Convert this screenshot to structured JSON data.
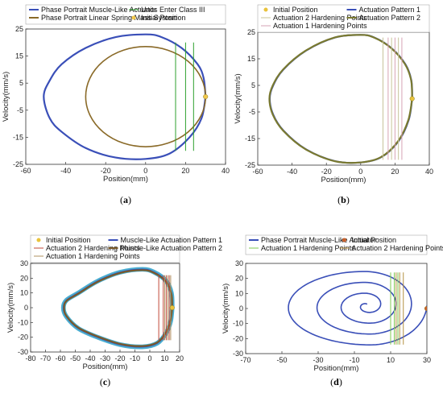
{
  "figure": {
    "panels": [
      {
        "caption_letter": "a"
      },
      {
        "caption_letter": "b"
      },
      {
        "caption_letter": "c"
      },
      {
        "caption_letter": "d"
      }
    ]
  },
  "chart_data": [
    {
      "panel": "a",
      "type": "line",
      "xlabel": "Position(mm)",
      "ylabel": "Velocity(mm/s)",
      "xlim": [
        -60,
        40
      ],
      "ylim": [
        -25,
        25
      ],
      "xticks": [
        -60,
        -40,
        -20,
        0,
        20,
        40
      ],
      "yticks": [
        -25,
        -15,
        -5,
        5,
        15,
        25
      ],
      "legend": {
        "placement": "top",
        "columns": 2,
        "entries": [
          "Phase Portrait Muscle-Like Actuator",
          "Units Enter Class III",
          "Phase Portrait Linear Spring Mass System",
          "Initial Position"
        ]
      },
      "series": [
        {
          "name": "Phase Portrait Muscle-Like Actuator",
          "color": "#3a4fb8",
          "kind": "loop",
          "points": [
            [
              30,
              0
            ],
            [
              29,
              7
            ],
            [
              26,
              12
            ],
            [
              18,
              18
            ],
            [
              8,
              22
            ],
            [
              0,
              23
            ],
            [
              -15,
              22
            ],
            [
              -30,
              18
            ],
            [
              -42,
              12
            ],
            [
              -48,
              6
            ],
            [
              -51,
              0
            ],
            [
              -48,
              -8
            ],
            [
              -42,
              -13
            ],
            [
              -30,
              -19
            ],
            [
              -15,
              -22.5
            ],
            [
              0,
              -23
            ],
            [
              12,
              -21
            ],
            [
              22,
              -15
            ],
            [
              28,
              -8
            ],
            [
              30,
              0
            ]
          ]
        },
        {
          "name": "Phase Portrait Linear Spring Mass System",
          "color": "#8a6a28",
          "kind": "ellipse",
          "center": [
            0,
            0
          ],
          "radii": [
            30,
            18.5
          ]
        },
        {
          "name": "Units Enter Class III",
          "color": "#2ca02c",
          "kind": "vlines",
          "x": [
            15,
            20,
            24
          ],
          "y_range": [
            -20,
            20
          ]
        },
        {
          "name": "Initial Position",
          "color": "#f2c84b",
          "kind": "point",
          "x": 30,
          "y": 0
        }
      ]
    },
    {
      "panel": "b",
      "type": "line",
      "xlabel": "Position(mm)",
      "ylabel": "Velocity(mm/s)",
      "xlim": [
        -60,
        40
      ],
      "ylim": [
        -25,
        25
      ],
      "xticks": [
        -60,
        -40,
        -20,
        0,
        20,
        40
      ],
      "yticks": [
        -25,
        -15,
        -5,
        5,
        15,
        25
      ],
      "legend": {
        "placement": "top",
        "columns": 2,
        "entries": [
          "Initial Position",
          "Actuation Pattern 1",
          "Actuation 2 Hardening Points",
          "Actuation Pattern 2",
          "Actuation 1 Hardening Points"
        ]
      },
      "series": [
        {
          "name": "Actuation Pattern 1",
          "color": "#3a4fb8",
          "kind": "loop",
          "points": [
            [
              30,
              0
            ],
            [
              29.5,
              7
            ],
            [
              26,
              13
            ],
            [
              18,
              19
            ],
            [
              8,
              23
            ],
            [
              0,
              24
            ],
            [
              -15,
              23
            ],
            [
              -32,
              18
            ],
            [
              -45,
              11
            ],
            [
              -51,
              5
            ],
            [
              -53,
              0
            ],
            [
              -51,
              -6
            ],
            [
              -45,
              -12
            ],
            [
              -32,
              -19
            ],
            [
              -15,
              -23.5
            ],
            [
              0,
              -24
            ],
            [
              12,
              -22
            ],
            [
              22,
              -16
            ],
            [
              28,
              -8
            ],
            [
              30,
              0
            ]
          ]
        },
        {
          "name": "Actuation Pattern 2",
          "color": "#7a7a30",
          "kind": "loop",
          "points": [
            [
              30,
              0
            ],
            [
              29.4,
              7
            ],
            [
              25.8,
              13
            ],
            [
              17.8,
              19
            ],
            [
              7.8,
              23
            ],
            [
              -0.2,
              24
            ],
            [
              -15.2,
              23
            ],
            [
              -32.2,
              18
            ],
            [
              -45.2,
              11
            ],
            [
              -51.2,
              5
            ],
            [
              -53.2,
              0
            ],
            [
              -51.2,
              -6
            ],
            [
              -45.2,
              -12
            ],
            [
              -32.2,
              -19
            ],
            [
              -15.2,
              -23.5
            ],
            [
              -0.2,
              -24
            ],
            [
              11.8,
              -22
            ],
            [
              21.8,
              -16
            ],
            [
              27.8,
              -8
            ],
            [
              30,
              0
            ]
          ]
        },
        {
          "name": "Actuation 1 Hardening Points",
          "color": "#d6a3b4",
          "kind": "vlines",
          "x": [
            16,
            20,
            24
          ],
          "y_range": [
            -23,
            23
          ]
        },
        {
          "name": "Actuation 2 Hardening Points",
          "color": "#c8c49a",
          "kind": "vlines",
          "x": [
            13,
            18,
            22
          ],
          "y_range": [
            -23,
            23
          ]
        },
        {
          "name": "Initial Position",
          "color": "#e9c33c",
          "kind": "point",
          "x": 30,
          "y": 0
        }
      ]
    },
    {
      "panel": "c",
      "type": "line",
      "xlabel": "Position(mm)",
      "ylabel": "Velocity(mm/s)",
      "xlim": [
        -80,
        20
      ],
      "ylim": [
        -30,
        30
      ],
      "xticks": [
        -80,
        -70,
        -60,
        -50,
        -40,
        -30,
        -20,
        -10,
        0,
        10,
        20
      ],
      "yticks": [
        -30,
        -20,
        -10,
        0,
        10,
        20,
        30
      ],
      "legend": {
        "placement": "top",
        "columns": 2,
        "entries": [
          "Initial Position",
          "Muscle-Like Actuation Pattern 1",
          "Actuation 2 Hardening Points",
          "Muscle-Like Actuation Pattern 2",
          "Actuation 1 Hardening Points"
        ]
      },
      "series": [
        {
          "name": "Muscle-Like Actuation Pattern 1",
          "color": "#3a4fb8",
          "kind": "loop",
          "points": [
            [
              15,
              0
            ],
            [
              14.5,
              10
            ],
            [
              11,
              18
            ],
            [
              3,
              24
            ],
            [
              -5,
              26
            ],
            [
              -20,
              24
            ],
            [
              -35,
              18
            ],
            [
              -48,
              10
            ],
            [
              -56,
              5
            ],
            [
              -58,
              0
            ],
            [
              -56,
              -6
            ],
            [
              -48,
              -14
            ],
            [
              -35,
              -20
            ],
            [
              -20,
              -25
            ],
            [
              -5,
              -26.5
            ],
            [
              5,
              -24
            ],
            [
              11,
              -17
            ],
            [
              14,
              -9
            ],
            [
              15,
              0
            ]
          ],
          "band": 2.2,
          "band_color": "#2aa0c8"
        },
        {
          "name": "Muscle-Like Actuation Pattern 2",
          "color": "#7a5a2a",
          "kind": "loop",
          "points": [
            [
              15,
              0
            ],
            [
              14.5,
              9.5
            ],
            [
              11,
              17.5
            ],
            [
              3,
              23.5
            ],
            [
              -5,
              25.5
            ],
            [
              -20,
              23.5
            ],
            [
              -35,
              17.5
            ],
            [
              -48,
              9.5
            ],
            [
              -56,
              4.5
            ],
            [
              -57.5,
              0
            ],
            [
              -56,
              -5.5
            ],
            [
              -48,
              -13.5
            ],
            [
              -35,
              -19.5
            ],
            [
              -20,
              -24.5
            ],
            [
              -5,
              -26
            ],
            [
              5,
              -23.5
            ],
            [
              11,
              -16.5
            ],
            [
              14,
              -8.5
            ],
            [
              15,
              0
            ]
          ]
        },
        {
          "name": "Actuation 1 Hardening Points",
          "color": "#b09060",
          "kind": "vlines",
          "x": [
            10,
            12,
            14
          ],
          "y_range": [
            -22,
            22
          ]
        },
        {
          "name": "Actuation 2 Hardening Points",
          "color": "#c04a3a",
          "kind": "vlines",
          "x": [
            6,
            9,
            11,
            13
          ],
          "y_range": [
            -22,
            22
          ]
        },
        {
          "name": "Initial Position",
          "color": "#e9c33c",
          "kind": "point",
          "x": 15,
          "y": 0
        }
      ]
    },
    {
      "panel": "d",
      "type": "line",
      "xlabel": "Position(mm)",
      "ylabel": "Velocity(mm/s)",
      "xlim": [
        -70,
        30
      ],
      "ylim": [
        -30,
        30
      ],
      "xticks": [
        -70,
        -50,
        -30,
        -10,
        10,
        30
      ],
      "yticks": [
        -30,
        -20,
        -10,
        0,
        10,
        20,
        30
      ],
      "legend": {
        "placement": "top",
        "columns": 2,
        "entries": [
          "Phase Portrait Muscle-Like Actuator",
          "Initial Position",
          "Actuation 1 Hardening Points",
          "Actuation 2 Hardening Points"
        ]
      },
      "series": [
        {
          "name": "Phase Portrait Muscle-Like Actuator",
          "color": "#3a4fb8",
          "kind": "spiral",
          "start": [
            30,
            0
          ],
          "end": [
            -3,
            2
          ],
          "turns": 3.75,
          "amp_y": 28
        },
        {
          "name": "Actuation 1 Hardening Points",
          "color": "#7fc850",
          "kind": "vlines",
          "x": [
            10,
            12,
            14
          ],
          "y_range": [
            -24,
            24
          ]
        },
        {
          "name": "Actuation 2 Hardening Points",
          "color": "#b49040",
          "kind": "vlines",
          "x": [
            13,
            15,
            17
          ],
          "y_range": [
            -24,
            24
          ]
        },
        {
          "name": "Initial Position",
          "color": "#c9602a",
          "kind": "point",
          "x": 30,
          "y": 0
        }
      ]
    }
  ]
}
